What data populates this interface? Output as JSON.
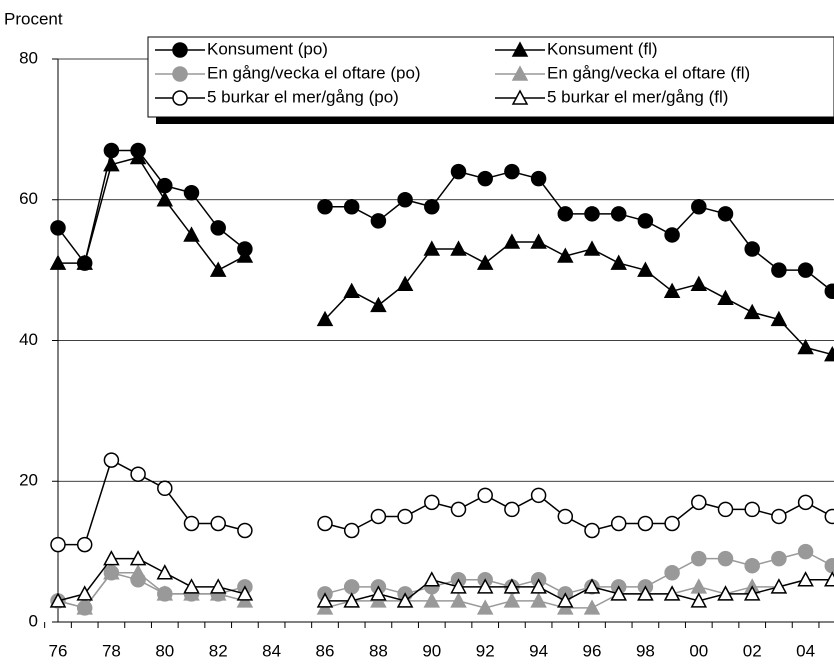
{
  "chart_data": {
    "type": "line",
    "ylabel": "Procent",
    "categories": [
      "76",
      null,
      "78",
      null,
      "80",
      null,
      "82",
      null,
      "84",
      null,
      "86",
      null,
      "88",
      null,
      "90",
      null,
      "92",
      null,
      "94",
      null,
      "96",
      null,
      "98",
      null,
      "00",
      null,
      "02",
      null,
      "04",
      null
    ],
    "ylim": [
      0,
      80
    ],
    "yticks": [
      0,
      20,
      40,
      60,
      80
    ],
    "grid": true,
    "series": [
      {
        "name": "Konsument (po)",
        "color": "#000000",
        "fill": "#000000",
        "marker": "circle",
        "values": [
          56,
          51,
          67,
          67,
          62,
          61,
          56,
          53,
          null,
          null,
          59,
          59,
          57,
          60,
          59,
          64,
          63,
          64,
          63,
          58,
          58,
          58,
          57,
          55,
          59,
          58,
          53,
          50,
          50,
          47
        ]
      },
      {
        "name": "Konsument (fl)",
        "color": "#000000",
        "fill": "#000000",
        "marker": "triangle",
        "values": [
          51,
          51,
          65,
          66,
          60,
          55,
          50,
          52,
          null,
          null,
          43,
          47,
          45,
          48,
          53,
          53,
          51,
          54,
          54,
          52,
          53,
          51,
          50,
          47,
          48,
          46,
          44,
          43,
          39,
          38
        ]
      },
      {
        "name": "En gång/vecka el oftare (po)",
        "color": "#999999",
        "fill": "#999999",
        "marker": "circle",
        "values": [
          3,
          2,
          7,
          6,
          4,
          4,
          4,
          5,
          null,
          null,
          4,
          5,
          5,
          4,
          5,
          6,
          6,
          5,
          6,
          4,
          5,
          5,
          5,
          7,
          9,
          9,
          8,
          9,
          10,
          8
        ]
      },
      {
        "name": "En gång/vecka el oftare (fl)",
        "color": "#999999",
        "fill": "#999999",
        "marker": "triangle",
        "values": [
          3,
          2,
          7,
          7,
          4,
          4,
          4,
          3,
          null,
          null,
          2,
          3,
          3,
          3,
          3,
          3,
          2,
          3,
          3,
          2,
          2,
          4,
          4,
          4,
          5,
          4,
          5,
          5,
          6,
          6
        ]
      },
      {
        "name": "5 burkar el mer/gång (po)",
        "color": "#000000",
        "fill": "#ffffff",
        "marker": "circle",
        "values": [
          11,
          11,
          23,
          21,
          19,
          14,
          14,
          13,
          null,
          null,
          14,
          13,
          15,
          15,
          17,
          16,
          18,
          16,
          18,
          15,
          13,
          14,
          14,
          14,
          17,
          16,
          16,
          15,
          17,
          15
        ]
      },
      {
        "name": "5 burkar el mer/gång (fl)",
        "color": "#000000",
        "fill": "#ffffff",
        "marker": "triangle",
        "values": [
          3,
          4,
          9,
          9,
          7,
          5,
          5,
          4,
          null,
          null,
          3,
          3,
          4,
          3,
          6,
          5,
          5,
          5,
          5,
          3,
          5,
          4,
          4,
          4,
          3,
          4,
          4,
          5,
          6,
          6
        ]
      }
    ]
  }
}
